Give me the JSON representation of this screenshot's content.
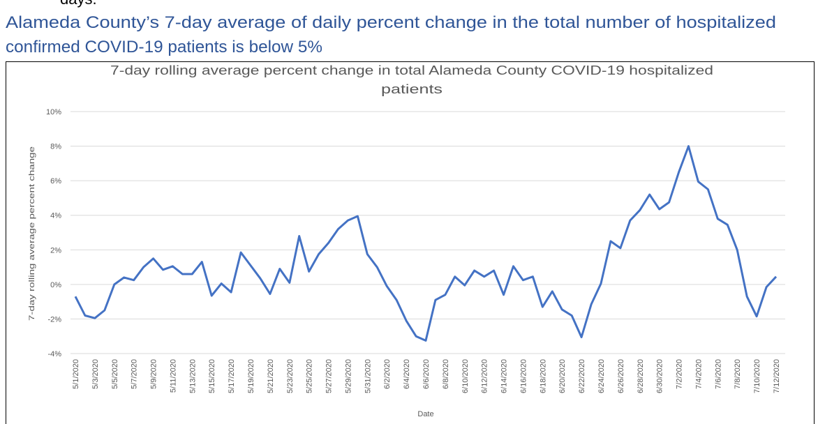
{
  "cut_text": "days.",
  "heading": [
    "Alameda County’s 7-day average of daily percent change in the total number of hospitalized",
    "confirmed COVID-19 patients is below 5%"
  ],
  "chart_data": {
    "type": "line",
    "title": [
      "7-day rolling average percent change in total Alameda County COVID-19 hospitalized",
      "patients"
    ],
    "xlabel": "Date",
    "ylabel": "7-day rolling average percent change",
    "categories": [
      "5/1/2020",
      null,
      "5/3/2020",
      null,
      "5/5/2020",
      null,
      "5/7/2020",
      null,
      "5/9/2020",
      null,
      "5/11/2020",
      null,
      "5/13/2020",
      null,
      "5/15/2020",
      null,
      "5/17/2020",
      null,
      "5/19/2020",
      null,
      "5/21/2020",
      null,
      "5/23/2020",
      null,
      "5/25/2020",
      null,
      "5/27/2020",
      null,
      "5/29/2020",
      null,
      "5/31/2020",
      null,
      "6/2/2020",
      null,
      "6/4/2020",
      null,
      "6/6/2020",
      null,
      "6/8/2020",
      null,
      "6/10/2020",
      null,
      "6/12/2020",
      null,
      "6/14/2020",
      null,
      "6/16/2020",
      null,
      "6/18/2020",
      null,
      "6/20/2020",
      null,
      "6/22/2020",
      null,
      "6/24/2020",
      null,
      "6/26/2020",
      null,
      "6/28/2020",
      null,
      "6/30/2020",
      null,
      "7/2/2020",
      null,
      "7/4/2020",
      null,
      "7/6/2020",
      null,
      "7/8/2020",
      null,
      "7/10/2020",
      null,
      "7/12/2020"
    ],
    "series": [
      {
        "name": "7-day rolling average percent change",
        "color": "#4472c4",
        "values": [
          -0.7,
          -1.8,
          -1.95,
          -1.5,
          0.0,
          0.4,
          0.25,
          1.0,
          1.5,
          0.85,
          1.05,
          0.6,
          0.6,
          1.3,
          -0.65,
          0.05,
          -0.45,
          1.85,
          1.1,
          0.35,
          -0.55,
          0.9,
          0.1,
          2.8,
          0.75,
          1.75,
          2.4,
          3.2,
          3.7,
          3.95,
          1.75,
          1.0,
          -0.1,
          -0.9,
          -2.1,
          -3.0,
          -3.25,
          -0.9,
          -0.6,
          0.45,
          -0.05,
          0.8,
          0.45,
          0.8,
          -0.6,
          1.05,
          0.25,
          0.45,
          -1.3,
          -0.4,
          -1.45,
          -1.8,
          -3.05,
          -1.15,
          0.05,
          2.5,
          2.1,
          3.7,
          4.3,
          5.2,
          4.35,
          4.75,
          6.5,
          8.0,
          5.95,
          5.5,
          3.8,
          3.45,
          2.0,
          -0.7,
          -1.85,
          -0.15,
          0.45
        ]
      }
    ],
    "ylim": [
      -4,
      10
    ],
    "yticks": [
      {
        "value": -4,
        "label": "-4%"
      },
      {
        "value": -2,
        "label": "-2%"
      },
      {
        "value": 0,
        "label": "0%"
      },
      {
        "value": 2,
        "label": "2%"
      },
      {
        "value": 4,
        "label": "4%"
      },
      {
        "value": 6,
        "label": "6%"
      },
      {
        "value": 8,
        "label": "8%"
      },
      {
        "value": 10,
        "label": "10%"
      }
    ],
    "grid": true
  }
}
